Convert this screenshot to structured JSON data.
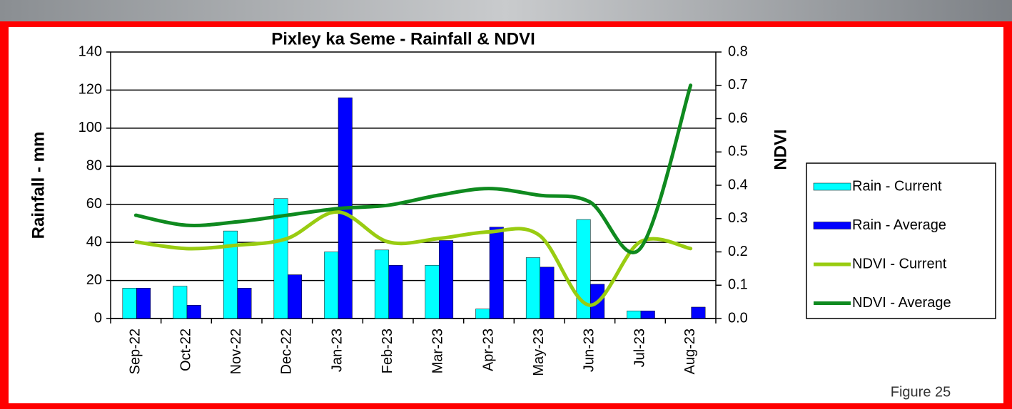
{
  "chart_data": {
    "type": "bar",
    "title": "Pixley ka Seme - Rainfall & NDVI",
    "y_label": "Rainfall - mm",
    "y2_label": "NDVI",
    "figure_label": "Figure 25",
    "categories": [
      "Sep-22",
      "Oct-22",
      "Nov-22",
      "Dec-22",
      "Jan-23",
      "Feb-23",
      "Mar-23",
      "Apr-23",
      "May-23",
      "Jun-23",
      "Jul-23",
      "Aug-23"
    ],
    "series": [
      {
        "name": "Rain - Current",
        "type": "bar",
        "color": "#00ffff",
        "values": [
          16,
          17,
          46,
          63,
          35,
          36,
          28,
          5,
          32,
          52,
          4,
          0
        ]
      },
      {
        "name": "Rain - Average",
        "type": "bar",
        "color": "#0000ff",
        "values": [
          16,
          7,
          16,
          23,
          116,
          28,
          41,
          48,
          27,
          18,
          4,
          6
        ]
      },
      {
        "name": "NDVI - Current",
        "type": "line",
        "axis": "y2",
        "color": "#99cc11",
        "values": [
          0.23,
          0.21,
          0.22,
          0.24,
          0.32,
          0.23,
          0.24,
          0.26,
          0.25,
          0.04,
          0.23,
          0.21
        ]
      },
      {
        "name": "NDVI - Average",
        "type": "line",
        "axis": "y2",
        "color": "#0f8a1f",
        "values": [
          0.31,
          0.28,
          0.29,
          0.31,
          0.33,
          0.34,
          0.37,
          0.39,
          0.37,
          0.35,
          0.21,
          0.7
        ]
      }
    ],
    "ylim": [
      0,
      140
    ],
    "yticks": [
      0,
      20,
      40,
      60,
      80,
      100,
      120,
      140
    ],
    "y2lim": [
      0,
      0.8
    ],
    "y2ticks": [
      {
        "value": 0,
        "label": "0.0"
      },
      0.1,
      0.2,
      0.3,
      0.4,
      0.5,
      0.6,
      0.7,
      0.8
    ],
    "grid": true,
    "legend": "right"
  }
}
